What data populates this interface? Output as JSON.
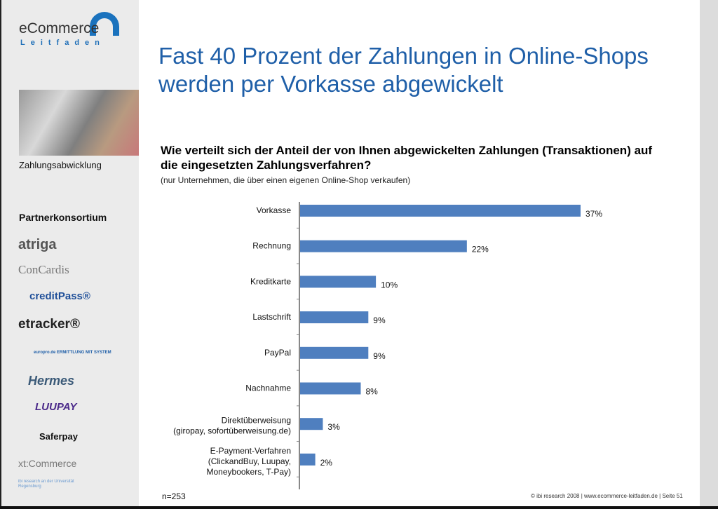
{
  "sidebar": {
    "logo_top": "eCommerce",
    "logo_bottom": "Leitfaden",
    "photo_label": "Zahlungsabwicklung",
    "partner_title": "Partnerkonsortium",
    "partners": [
      "atriga",
      "ConCardis",
      "creditPass®",
      "etracker®",
      "europro.de ERMITTLUNG MIT SYSTEM",
      "Hermes",
      "LUUPAY",
      "Saferpay",
      "xt:Commerce",
      "ibi research an der Universität Regensburg"
    ]
  },
  "main": {
    "title": "Fast 40 Prozent der Zahlungen in Online-Shops werden per Vorkasse abgewickelt",
    "question": "Wie verteilt sich der Anteil der von Ihnen abgewickelten Zahlungen (Transaktionen) auf die eingesetzten Zahlungsverfahren?",
    "subtitle": "(nur Unternehmen, die über einen eigenen Online-Shop verkaufen)",
    "n": "n=253",
    "footer": "© ibi research 2008 | www.ecommerce-leitfaden.de | Seite 51"
  },
  "colors": {
    "bar": "#4f7fbf",
    "title": "#1f5fa8"
  },
  "chart_data": {
    "type": "bar",
    "orientation": "horizontal",
    "categories": [
      "Vorkasse",
      "Rechnung",
      "Kreditkarte",
      "Lastschrift",
      "PayPal",
      "Nachnahme",
      "Direktüberweisung\n(giropay, sofortüberweisung.de)",
      "E-Payment-Verfahren\n(ClickandBuy, Luupay,\nMoneybookers, T-Pay)"
    ],
    "values": [
      37,
      22,
      10,
      9,
      9,
      8,
      3,
      2
    ],
    "labels": [
      "37%",
      "22%",
      "10%",
      "9%",
      "9%",
      "8%",
      "3%",
      "2%"
    ],
    "unit": "%",
    "xlim": [
      0,
      37
    ],
    "grid": false
  }
}
